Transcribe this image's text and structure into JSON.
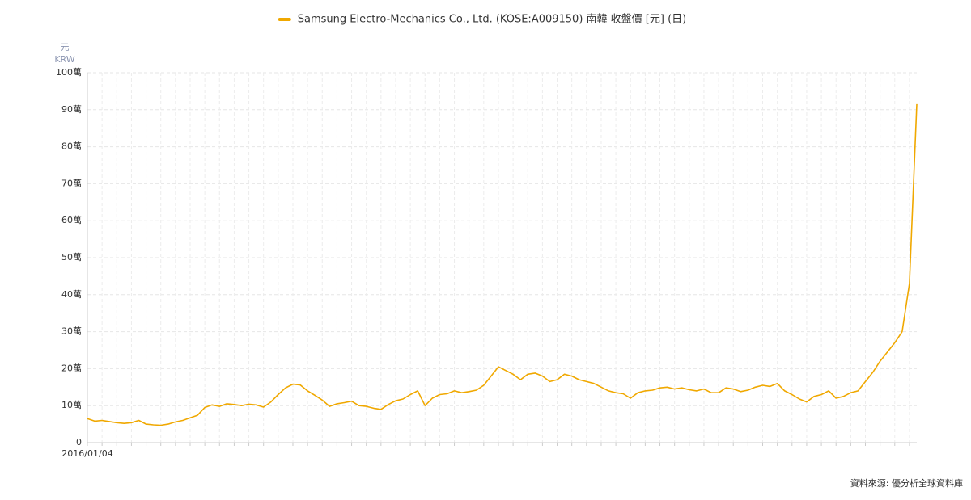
{
  "chart_data": {
    "type": "line",
    "legend": "top",
    "y_unit": "元",
    "y_currency": "KRW",
    "source": "資料來源: 優分析全球資料庫",
    "grid": true,
    "categories": [
      "2016/01/04",
      null,
      null,
      null,
      null,
      null,
      null,
      null,
      null,
      null,
      null,
      null,
      null,
      null,
      null,
      null,
      null,
      null,
      null,
      null,
      null,
      null,
      null,
      null,
      null,
      null,
      null,
      null,
      null,
      null,
      null,
      null,
      null,
      null,
      null,
      null,
      null,
      null,
      null,
      null,
      null,
      null,
      null,
      null,
      null,
      null,
      null,
      null,
      null,
      null,
      null,
      null,
      null,
      null,
      null,
      null,
      null,
      null,
      null,
      null,
      null,
      null,
      null,
      null,
      null,
      null,
      null,
      null,
      null,
      null,
      null,
      null,
      null,
      null,
      null,
      null,
      null,
      null,
      null,
      null,
      null,
      null,
      null,
      null,
      null,
      null,
      null,
      null,
      null,
      null,
      null,
      null,
      null,
      null,
      null,
      null,
      null,
      null,
      null,
      null,
      null,
      null,
      null,
      null,
      null,
      null,
      null,
      null,
      null,
      null,
      null,
      null,
      null,
      null
    ],
    "series": [
      {
        "name": "Samsung Electro-Mechanics Co., Ltd. (KOSE:A009150) 南韓 收盤價 [元] (日)",
        "color": "#f0a800",
        "values": [
          65000,
          58000,
          60000,
          57000,
          54000,
          52000,
          54000,
          60000,
          50000,
          48000,
          47000,
          50000,
          56000,
          60000,
          67000,
          74000,
          95000,
          102000,
          98000,
          105000,
          103000,
          100000,
          104000,
          102000,
          96000,
          110000,
          130000,
          148000,
          158000,
          156000,
          140000,
          128000,
          115000,
          98000,
          105000,
          108000,
          112000,
          100000,
          98000,
          93000,
          90000,
          103000,
          113000,
          118000,
          130000,
          140000,
          100000,
          120000,
          130000,
          132000,
          140000,
          135000,
          138000,
          142000,
          155000,
          180000,
          205000,
          195000,
          185000,
          170000,
          185000,
          188000,
          180000,
          165000,
          170000,
          185000,
          180000,
          170000,
          165000,
          160000,
          150000,
          140000,
          135000,
          132000,
          120000,
          135000,
          140000,
          142000,
          148000,
          150000,
          145000,
          148000,
          143000,
          140000,
          145000,
          135000,
          135000,
          148000,
          145000,
          138000,
          142000,
          150000,
          155000,
          152000,
          160000,
          140000,
          130000,
          118000,
          110000,
          125000,
          130000,
          140000,
          120000,
          125000,
          135000,
          140000,
          165000,
          190000,
          220000,
          245000,
          270000,
          300000,
          430000,
          915000
        ]
      }
    ],
    "ylim": [
      0,
      1000000
    ],
    "yticks": [
      0,
      {
        "value": 100000,
        "label": "10萬"
      },
      {
        "value": 200000,
        "label": "20萬"
      },
      {
        "value": 300000,
        "label": "30萬"
      },
      {
        "value": 400000,
        "label": "40萬"
      },
      {
        "value": 500000,
        "label": "50萬"
      },
      {
        "value": 600000,
        "label": "60萬"
      },
      {
        "value": 700000,
        "label": "70萬"
      },
      {
        "value": 800000,
        "label": "80萬"
      },
      {
        "value": 900000,
        "label": "90萬"
      },
      {
        "value": 1000000,
        "label": "100萬"
      }
    ]
  }
}
